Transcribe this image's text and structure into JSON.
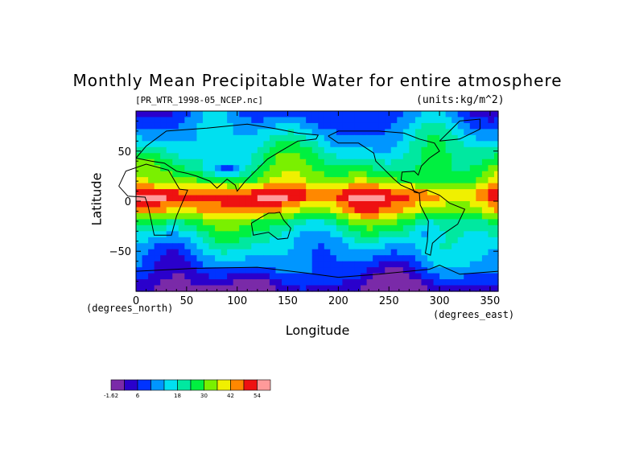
{
  "chart_data": {
    "type": "heatmap",
    "title": "Monthly Mean Precipitable Water for entire atmosphere",
    "subtitle": "[PR_WTR_1998-05_NCEP.nc]",
    "units": "(units:kg/m^2)",
    "xlabel": "Longitude",
    "ylabel": "Latitude",
    "x_unit_label": "(degrees_east)",
    "y_unit_label": "(degrees_north)",
    "xlim": [
      0,
      358
    ],
    "ylim": [
      -90,
      90
    ],
    "x_ticks": [
      "0",
      "50",
      "100",
      "150",
      "200",
      "250",
      "300",
      "350"
    ],
    "x_tick_values": [
      0,
      50,
      100,
      150,
      200,
      250,
      300,
      350
    ],
    "y_ticks": [
      "50",
      "0",
      "−50"
    ],
    "y_tick_values": [
      50,
      0,
      -50
    ],
    "color_levels": [
      {
        "label": "-1.62",
        "color": "#7a2aa8"
      },
      {
        "label": "",
        "color": "#2a00cc"
      },
      {
        "label": "6",
        "color": "#0033ff"
      },
      {
        "label": "",
        "color": "#0096ff"
      },
      {
        "label": "",
        "color": "#00e0f0"
      },
      {
        "label": "18",
        "color": "#00e8a0"
      },
      {
        "label": "",
        "color": "#00f040"
      },
      {
        "label": "30",
        "color": "#7af000"
      },
      {
        "label": "",
        "color": "#f0f000"
      },
      {
        "label": "42",
        "color": "#ff8800"
      },
      {
        "label": "",
        "color": "#ee1111"
      },
      {
        "label": "54",
        "color": "#ff9a9a"
      }
    ],
    "zonal_mean_levels_by_latitude": [
      {
        "lat": 90,
        "level": 2
      },
      {
        "lat": 75,
        "level": 3
      },
      {
        "lat": 60,
        "level": 4
      },
      {
        "lat": 45,
        "level": 5
      },
      {
        "lat": 30,
        "level": 6
      },
      {
        "lat": 20,
        "level": 7
      },
      {
        "lat": 10,
        "level": 9
      },
      {
        "lat": 5,
        "level": 10
      },
      {
        "lat": 0,
        "level": 9
      },
      {
        "lat": -10,
        "level": 8
      },
      {
        "lat": -20,
        "level": 6
      },
      {
        "lat": -30,
        "level": 5
      },
      {
        "lat": -40,
        "level": 4
      },
      {
        "lat": -55,
        "level": 3
      },
      {
        "lat": -70,
        "level": 2
      },
      {
        "lat": -80,
        "level": 1
      },
      {
        "lat": -90,
        "level": 0
      }
    ],
    "grid": false,
    "legend_position": "bottom-left"
  }
}
